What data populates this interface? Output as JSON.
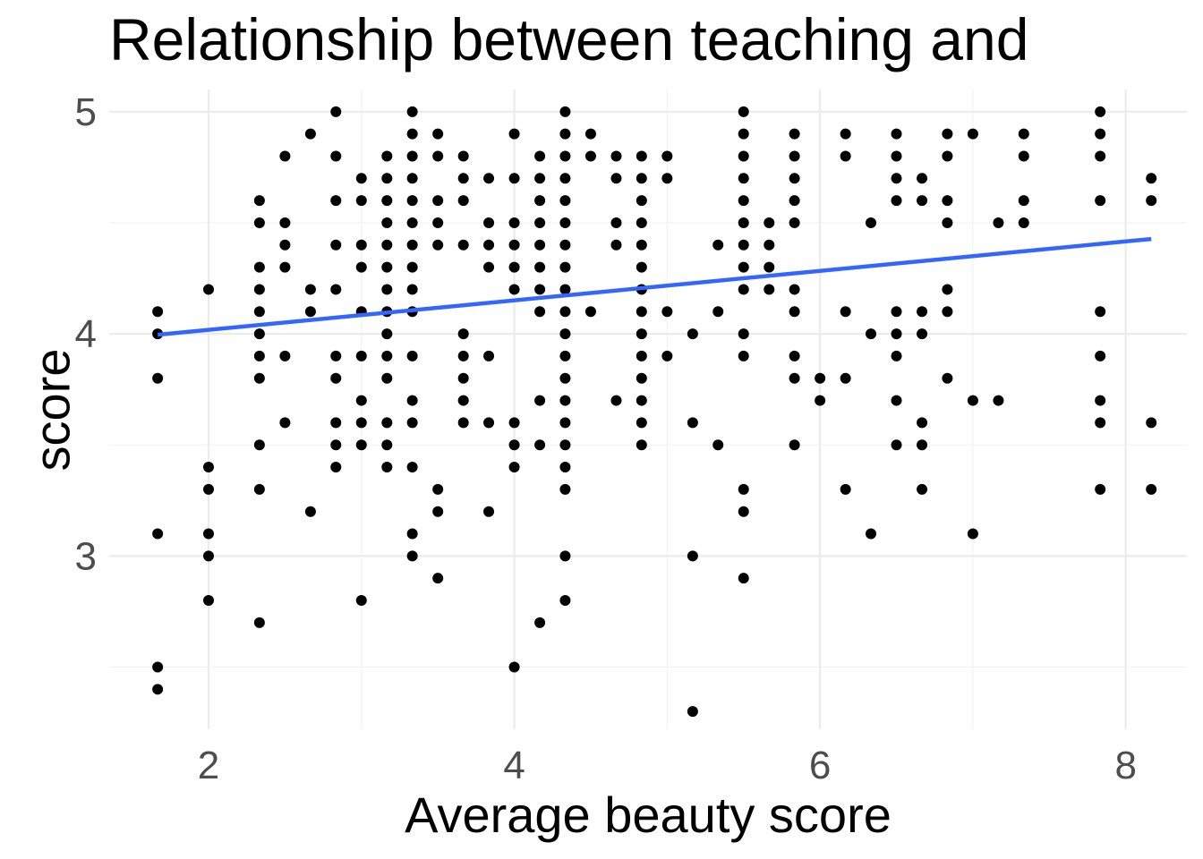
{
  "chart_data": {
    "type": "scatter",
    "title": "Relationship between teaching and",
    "xlabel": "Average beauty score",
    "ylabel": "score",
    "xlim": [
      1.35,
      8.4
    ],
    "ylim": [
      2.22,
      5.1
    ],
    "x_ticks": [
      2,
      4,
      6,
      8
    ],
    "x_tick_labels": [
      "2",
      "4",
      "6",
      "8"
    ],
    "y_ticks": [
      3,
      4,
      5
    ],
    "y_tick_labels": [
      "3",
      "4",
      "5"
    ],
    "grid": true,
    "legend": "none",
    "colors": {
      "points": "#000000",
      "trend_line": "#3366ff",
      "grid": "#ebebeb"
    },
    "trend_line": {
      "method": "lm",
      "x": [
        1.667,
        8.167
      ],
      "y": [
        3.996,
        4.427
      ]
    },
    "points": [
      [
        1.667,
        4.1
      ],
      [
        1.667,
        4.0
      ],
      [
        1.667,
        3.8
      ],
      [
        1.667,
        3.1
      ],
      [
        1.667,
        2.5
      ],
      [
        1.667,
        2.4
      ],
      [
        2.0,
        4.2
      ],
      [
        2.0,
        3.4
      ],
      [
        2.0,
        3.3
      ],
      [
        2.0,
        3.1
      ],
      [
        2.0,
        3.0
      ],
      [
        2.0,
        2.8
      ],
      [
        2.333,
        4.6
      ],
      [
        2.333,
        4.5
      ],
      [
        2.333,
        4.3
      ],
      [
        2.333,
        4.2
      ],
      [
        2.333,
        4.1
      ],
      [
        2.333,
        4.0
      ],
      [
        2.333,
        3.9
      ],
      [
        2.333,
        3.8
      ],
      [
        2.333,
        3.5
      ],
      [
        2.333,
        3.3
      ],
      [
        2.333,
        2.7
      ],
      [
        2.5,
        4.8
      ],
      [
        2.5,
        4.5
      ],
      [
        2.5,
        4.4
      ],
      [
        2.5,
        4.3
      ],
      [
        2.5,
        3.9
      ],
      [
        2.5,
        3.6
      ],
      [
        2.667,
        4.9
      ],
      [
        2.667,
        4.2
      ],
      [
        2.667,
        4.1
      ],
      [
        2.667,
        3.2
      ],
      [
        2.833,
        5.0
      ],
      [
        2.833,
        4.8
      ],
      [
        2.833,
        4.6
      ],
      [
        2.833,
        4.4
      ],
      [
        2.833,
        4.2
      ],
      [
        2.833,
        3.9
      ],
      [
        2.833,
        3.8
      ],
      [
        2.833,
        3.6
      ],
      [
        2.833,
        3.5
      ],
      [
        2.833,
        3.4
      ],
      [
        3.0,
        4.7
      ],
      [
        3.0,
        4.6
      ],
      [
        3.0,
        4.4
      ],
      [
        3.0,
        4.3
      ],
      [
        3.0,
        4.1
      ],
      [
        3.0,
        3.9
      ],
      [
        3.0,
        3.7
      ],
      [
        3.0,
        3.6
      ],
      [
        3.0,
        3.5
      ],
      [
        3.0,
        2.8
      ],
      [
        3.167,
        4.8
      ],
      [
        3.167,
        4.7
      ],
      [
        3.167,
        4.6
      ],
      [
        3.167,
        4.5
      ],
      [
        3.167,
        4.4
      ],
      [
        3.167,
        4.3
      ],
      [
        3.167,
        4.2
      ],
      [
        3.167,
        4.1
      ],
      [
        3.167,
        4.0
      ],
      [
        3.167,
        3.9
      ],
      [
        3.167,
        3.8
      ],
      [
        3.167,
        3.6
      ],
      [
        3.167,
        3.5
      ],
      [
        3.167,
        3.4
      ],
      [
        3.333,
        5.0
      ],
      [
        3.333,
        4.9
      ],
      [
        3.333,
        4.8
      ],
      [
        3.333,
        4.7
      ],
      [
        3.333,
        4.6
      ],
      [
        3.333,
        4.5
      ],
      [
        3.333,
        4.4
      ],
      [
        3.333,
        4.3
      ],
      [
        3.333,
        4.2
      ],
      [
        3.333,
        4.1
      ],
      [
        3.333,
        3.9
      ],
      [
        3.333,
        3.7
      ],
      [
        3.333,
        3.6
      ],
      [
        3.333,
        3.4
      ],
      [
        3.333,
        3.1
      ],
      [
        3.333,
        3.0
      ],
      [
        3.5,
        4.9
      ],
      [
        3.5,
        4.8
      ],
      [
        3.5,
        4.6
      ],
      [
        3.5,
        4.5
      ],
      [
        3.5,
        4.4
      ],
      [
        3.5,
        3.3
      ],
      [
        3.5,
        3.2
      ],
      [
        3.5,
        2.9
      ],
      [
        3.667,
        4.8
      ],
      [
        3.667,
        4.7
      ],
      [
        3.667,
        4.6
      ],
      [
        3.667,
        4.4
      ],
      [
        3.667,
        4.0
      ],
      [
        3.667,
        3.9
      ],
      [
        3.667,
        3.8
      ],
      [
        3.667,
        3.7
      ],
      [
        3.667,
        3.6
      ],
      [
        3.833,
        4.7
      ],
      [
        3.833,
        4.5
      ],
      [
        3.833,
        4.4
      ],
      [
        3.833,
        4.3
      ],
      [
        3.833,
        3.9
      ],
      [
        3.833,
        3.6
      ],
      [
        3.833,
        3.2
      ],
      [
        4.0,
        4.9
      ],
      [
        4.0,
        4.7
      ],
      [
        4.0,
        4.5
      ],
      [
        4.0,
        4.4
      ],
      [
        4.0,
        4.3
      ],
      [
        4.0,
        4.2
      ],
      [
        4.0,
        3.6
      ],
      [
        4.0,
        3.5
      ],
      [
        4.0,
        3.4
      ],
      [
        4.0,
        2.5
      ],
      [
        4.167,
        4.8
      ],
      [
        4.167,
        4.7
      ],
      [
        4.167,
        4.6
      ],
      [
        4.167,
        4.5
      ],
      [
        4.167,
        4.4
      ],
      [
        4.167,
        4.3
      ],
      [
        4.167,
        4.2
      ],
      [
        4.167,
        4.1
      ],
      [
        4.167,
        3.7
      ],
      [
        4.167,
        3.5
      ],
      [
        4.167,
        2.7
      ],
      [
        4.333,
        5.0
      ],
      [
        4.333,
        4.9
      ],
      [
        4.333,
        4.8
      ],
      [
        4.333,
        4.7
      ],
      [
        4.333,
        4.6
      ],
      [
        4.333,
        4.5
      ],
      [
        4.333,
        4.4
      ],
      [
        4.333,
        4.3
      ],
      [
        4.333,
        4.2
      ],
      [
        4.333,
        4.1
      ],
      [
        4.333,
        4.0
      ],
      [
        4.333,
        3.9
      ],
      [
        4.333,
        3.8
      ],
      [
        4.333,
        3.7
      ],
      [
        4.333,
        3.6
      ],
      [
        4.333,
        3.5
      ],
      [
        4.333,
        3.4
      ],
      [
        4.333,
        3.3
      ],
      [
        4.333,
        3.0
      ],
      [
        4.333,
        2.8
      ],
      [
        4.5,
        4.9
      ],
      [
        4.5,
        4.8
      ],
      [
        4.5,
        4.1
      ],
      [
        4.667,
        4.8
      ],
      [
        4.667,
        4.7
      ],
      [
        4.667,
        4.5
      ],
      [
        4.667,
        4.4
      ],
      [
        4.667,
        3.7
      ],
      [
        4.833,
        4.8
      ],
      [
        4.833,
        4.7
      ],
      [
        4.833,
        4.6
      ],
      [
        4.833,
        4.5
      ],
      [
        4.833,
        4.4
      ],
      [
        4.833,
        4.3
      ],
      [
        4.833,
        4.2
      ],
      [
        4.833,
        4.1
      ],
      [
        4.833,
        4.0
      ],
      [
        4.833,
        3.9
      ],
      [
        4.833,
        3.8
      ],
      [
        4.833,
        3.7
      ],
      [
        4.833,
        3.6
      ],
      [
        4.833,
        3.5
      ],
      [
        5.0,
        4.8
      ],
      [
        5.0,
        4.7
      ],
      [
        5.0,
        4.1
      ],
      [
        5.0,
        3.9
      ],
      [
        5.167,
        4.0
      ],
      [
        5.167,
        3.6
      ],
      [
        5.167,
        3.0
      ],
      [
        5.167,
        2.3
      ],
      [
        5.333,
        4.4
      ],
      [
        5.333,
        4.1
      ],
      [
        5.333,
        3.5
      ],
      [
        5.5,
        5.0
      ],
      [
        5.5,
        4.9
      ],
      [
        5.5,
        4.8
      ],
      [
        5.5,
        4.7
      ],
      [
        5.5,
        4.6
      ],
      [
        5.5,
        4.5
      ],
      [
        5.5,
        4.4
      ],
      [
        5.5,
        4.3
      ],
      [
        5.5,
        4.2
      ],
      [
        5.5,
        4.0
      ],
      [
        5.5,
        3.9
      ],
      [
        5.5,
        3.3
      ],
      [
        5.5,
        3.2
      ],
      [
        5.5,
        2.9
      ],
      [
        5.667,
        4.5
      ],
      [
        5.667,
        4.4
      ],
      [
        5.667,
        4.3
      ],
      [
        5.667,
        4.2
      ],
      [
        5.833,
        4.9
      ],
      [
        5.833,
        4.8
      ],
      [
        5.833,
        4.7
      ],
      [
        5.833,
        4.6
      ],
      [
        5.833,
        4.5
      ],
      [
        5.833,
        4.2
      ],
      [
        5.833,
        4.1
      ],
      [
        5.833,
        3.9
      ],
      [
        5.833,
        3.8
      ],
      [
        5.833,
        3.5
      ],
      [
        6.0,
        3.8
      ],
      [
        6.0,
        3.7
      ],
      [
        6.167,
        4.9
      ],
      [
        6.167,
        4.8
      ],
      [
        6.167,
        4.1
      ],
      [
        6.167,
        3.8
      ],
      [
        6.167,
        3.3
      ],
      [
        6.333,
        4.5
      ],
      [
        6.333,
        4.0
      ],
      [
        6.333,
        3.1
      ],
      [
        6.5,
        4.9
      ],
      [
        6.5,
        4.8
      ],
      [
        6.5,
        4.7
      ],
      [
        6.5,
        4.6
      ],
      [
        6.5,
        4.1
      ],
      [
        6.5,
        4.0
      ],
      [
        6.5,
        3.9
      ],
      [
        6.5,
        3.7
      ],
      [
        6.5,
        3.5
      ],
      [
        6.667,
        4.7
      ],
      [
        6.667,
        4.6
      ],
      [
        6.667,
        4.1
      ],
      [
        6.667,
        4.0
      ],
      [
        6.667,
        3.6
      ],
      [
        6.667,
        3.5
      ],
      [
        6.667,
        3.3
      ],
      [
        6.833,
        4.9
      ],
      [
        6.833,
        4.8
      ],
      [
        6.833,
        4.6
      ],
      [
        6.833,
        4.5
      ],
      [
        6.833,
        4.2
      ],
      [
        6.833,
        4.1
      ],
      [
        6.833,
        3.8
      ],
      [
        7.0,
        4.9
      ],
      [
        7.0,
        3.7
      ],
      [
        7.0,
        3.1
      ],
      [
        7.167,
        4.5
      ],
      [
        7.167,
        3.7
      ],
      [
        7.333,
        4.9
      ],
      [
        7.333,
        4.8
      ],
      [
        7.333,
        4.6
      ],
      [
        7.333,
        4.5
      ],
      [
        7.833,
        5.0
      ],
      [
        7.833,
        4.9
      ],
      [
        7.833,
        4.8
      ],
      [
        7.833,
        4.6
      ],
      [
        7.833,
        4.1
      ],
      [
        7.833,
        3.9
      ],
      [
        7.833,
        3.7
      ],
      [
        7.833,
        3.6
      ],
      [
        7.833,
        3.3
      ],
      [
        8.167,
        4.7
      ],
      [
        8.167,
        4.6
      ],
      [
        8.167,
        3.6
      ],
      [
        8.167,
        3.3
      ]
    ]
  }
}
